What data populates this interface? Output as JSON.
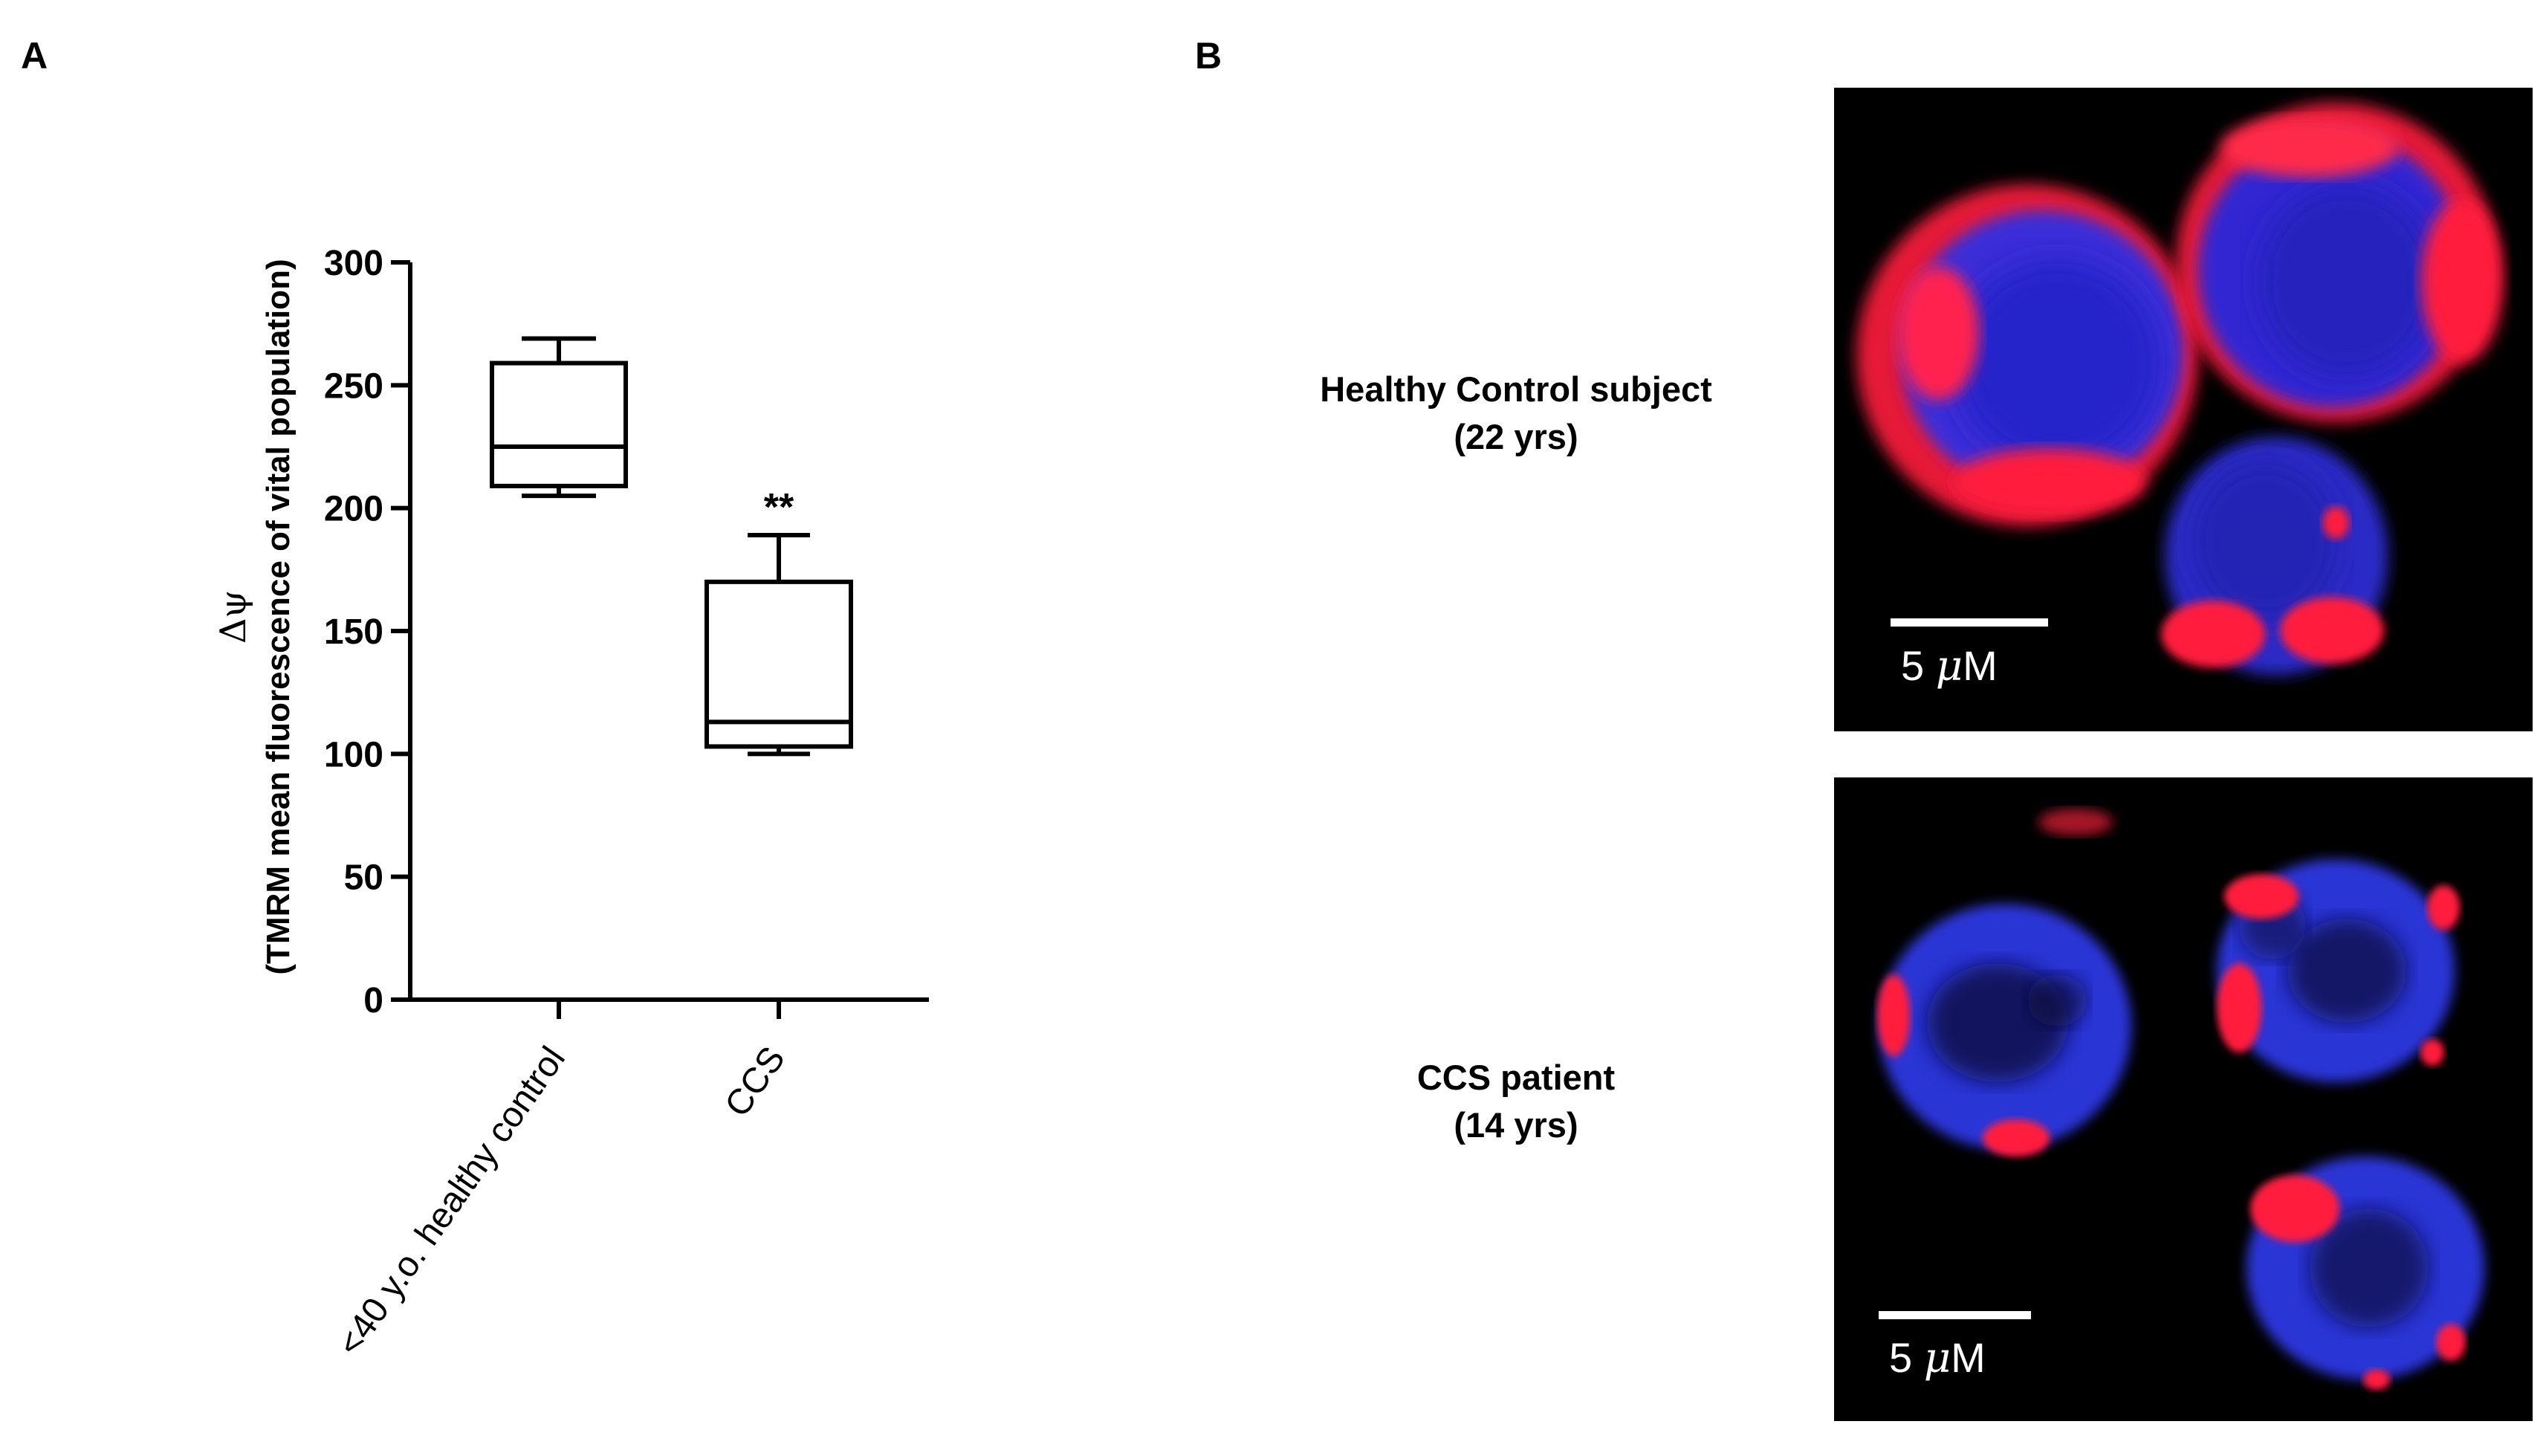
{
  "panels": {
    "a_letter": "A",
    "b_letter": "B"
  },
  "chart_data": {
    "type": "box",
    "ylabel_symbol": "Δψ",
    "ylabel": "(TMRM mean fluorescence of vital population)",
    "ylim": [
      0,
      300
    ],
    "yticks": [
      0,
      50,
      100,
      150,
      200,
      250,
      300
    ],
    "categories": [
      "<40 y.o. healthy control",
      "CCS"
    ],
    "boxes": [
      {
        "category": "<40 y.o. healthy control",
        "min": 205,
        "q1": 209,
        "median": 225,
        "q3": 259,
        "max": 269,
        "annotation": ""
      },
      {
        "category": "CCS",
        "min": 100,
        "q1": 103,
        "median": 113,
        "q3": 170,
        "max": 189,
        "annotation": "**"
      }
    ],
    "grid": false
  },
  "microscopy": {
    "healthy": {
      "label_line1": "Healthy Control subject",
      "label_line2": "(22 yrs)",
      "scale_number": "5",
      "scale_unit_greek": "μ",
      "scale_unit_rest": "M"
    },
    "ccs": {
      "label_line1": "CCS patient",
      "label_line2": "(14 yrs)",
      "scale_number": "5",
      "scale_unit_greek": "μ",
      "scale_unit_rest": "M"
    },
    "colors": {
      "nucleus": "#2a36d6",
      "mitochondria": "#ff1f3d",
      "background": "#000000"
    }
  }
}
